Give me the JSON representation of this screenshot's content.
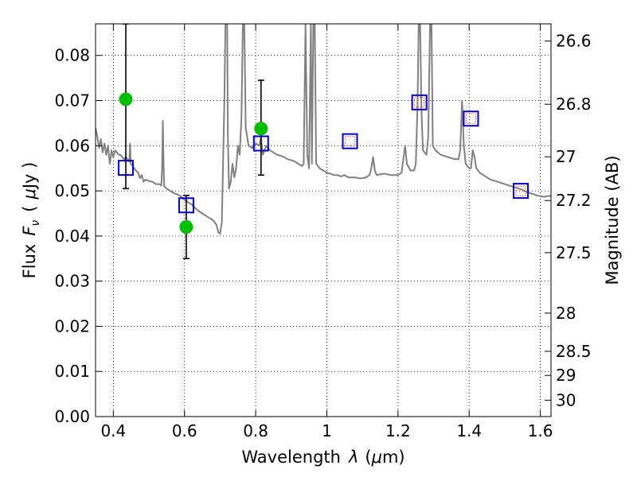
{
  "chart_data": {
    "type": "scatter",
    "xlabel_text": "Wavelength",
    "xlabel_symbol": "λ",
    "xlabel_unit_open": "(",
    "xlabel_unit_symbol": "μ",
    "xlabel_unit_rest": "m)",
    "ylabel_text": "Flux",
    "ylabel_symbol_F": "F",
    "ylabel_symbol_sub": "ν",
    "ylabel_unit_open": "(",
    "ylabel_unit_symbol": "μ",
    "ylabel_unit_rest": "Jy )",
    "y2label": "Magnitude (AB)",
    "xlim": [
      0.35,
      1.63
    ],
    "ylim": [
      0.0,
      0.087
    ],
    "grid": true,
    "x_ticks": [
      {
        "value": 0.4,
        "label": "0.4"
      },
      {
        "value": 0.6,
        "label": "0.6"
      },
      {
        "value": 0.8,
        "label": "0.8"
      },
      {
        "value": 1.0,
        "label": "1"
      },
      {
        "value": 1.2,
        "label": "1.2"
      },
      {
        "value": 1.4,
        "label": "1.4"
      },
      {
        "value": 1.6,
        "label": "1.6"
      }
    ],
    "y_ticks": [
      {
        "value": 0.0,
        "label": "0.00"
      },
      {
        "value": 0.01,
        "label": "0.01"
      },
      {
        "value": 0.02,
        "label": "0.02"
      },
      {
        "value": 0.03,
        "label": "0.03"
      },
      {
        "value": 0.04,
        "label": "0.04"
      },
      {
        "value": 0.05,
        "label": "0.05"
      },
      {
        "value": 0.06,
        "label": "0.06"
      },
      {
        "value": 0.07,
        "label": "0.07"
      },
      {
        "value": 0.08,
        "label": "0.08"
      }
    ],
    "y2_ticks": [
      {
        "value": 26.6,
        "label": "26.6"
      },
      {
        "value": 26.8,
        "label": "26.8"
      },
      {
        "value": 27.0,
        "label": "27"
      },
      {
        "value": 27.2,
        "label": "27.2"
      },
      {
        "value": 27.5,
        "label": "27.5"
      },
      {
        "value": 28.0,
        "label": "28"
      },
      {
        "value": 28.5,
        "label": "28.5"
      },
      {
        "value": 29.0,
        "label": "29"
      },
      {
        "value": 30.0,
        "label": "30"
      }
    ],
    "colors": {
      "spectrum": "#808080",
      "observed": "#00bf00",
      "model": "#0000cc",
      "model_inner": "#ff0000",
      "error": "#000000"
    },
    "series": [
      {
        "type": "line",
        "points": [
          [
            0.35,
            0.064
          ],
          [
            0.355,
            0.062
          ],
          [
            0.36,
            0.0595
          ],
          [
            0.365,
            0.0615
          ],
          [
            0.37,
            0.0585
          ],
          [
            0.375,
            0.0605
          ],
          [
            0.38,
            0.058
          ],
          [
            0.385,
            0.06
          ],
          [
            0.39,
            0.056
          ],
          [
            0.395,
            0.059
          ],
          [
            0.4,
            0.0575
          ],
          [
            0.405,
            0.059
          ],
          [
            0.41,
            0.0585
          ],
          [
            0.415,
            0.058
          ],
          [
            0.42,
            0.058
          ],
          [
            0.425,
            0.0575
          ],
          [
            0.43,
            0.057
          ],
          [
            0.435,
            0.0575
          ],
          [
            0.44,
            0.057
          ],
          [
            0.445,
            0.0565
          ],
          [
            0.447,
            0.0605
          ],
          [
            0.449,
            0.056
          ],
          [
            0.455,
            0.0555
          ],
          [
            0.46,
            0.0548
          ],
          [
            0.47,
            0.054
          ],
          [
            0.475,
            0.0528
          ],
          [
            0.48,
            0.0535
          ],
          [
            0.485,
            0.052
          ],
          [
            0.49,
            0.0525
          ],
          [
            0.5,
            0.0522
          ],
          [
            0.51,
            0.052
          ],
          [
            0.52,
            0.0515
          ],
          [
            0.53,
            0.0515
          ],
          [
            0.535,
            0.0512
          ],
          [
            0.537,
            0.055
          ],
          [
            0.539,
            0.0655
          ],
          [
            0.541,
            0.056
          ],
          [
            0.543,
            0.051
          ],
          [
            0.55,
            0.0505
          ],
          [
            0.56,
            0.05
          ],
          [
            0.57,
            0.0495
          ],
          [
            0.58,
            0.0492
          ],
          [
            0.59,
            0.0488
          ],
          [
            0.6,
            0.048
          ],
          [
            0.61,
            0.0475
          ],
          [
            0.62,
            0.047
          ],
          [
            0.63,
            0.0462
          ],
          [
            0.64,
            0.0455
          ],
          [
            0.65,
            0.045
          ],
          [
            0.66,
            0.0445
          ],
          [
            0.67,
            0.044
          ],
          [
            0.68,
            0.0435
          ],
          [
            0.69,
            0.0425
          ],
          [
            0.695,
            0.0408
          ],
          [
            0.7,
            0.0405
          ],
          [
            0.705,
            0.043
          ],
          [
            0.708,
            0.055
          ],
          [
            0.712,
            0.07
          ],
          [
            0.715,
            0.087
          ],
          [
            0.72,
            0.087
          ],
          [
            0.722,
            0.062
          ],
          [
            0.725,
            0.0505
          ],
          [
            0.73,
            0.052
          ],
          [
            0.735,
            0.056
          ],
          [
            0.74,
            0.053
          ],
          [
            0.745,
            0.055
          ],
          [
            0.75,
            0.06
          ],
          [
            0.755,
            0.058
          ],
          [
            0.76,
            0.066
          ],
          [
            0.764,
            0.087
          ],
          [
            0.768,
            0.087
          ],
          [
            0.772,
            0.064
          ],
          [
            0.78,
            0.06
          ],
          [
            0.79,
            0.0595
          ],
          [
            0.8,
            0.0605
          ],
          [
            0.81,
            0.06
          ],
          [
            0.815,
            0.062
          ],
          [
            0.82,
            0.058
          ],
          [
            0.83,
            0.06
          ],
          [
            0.84,
            0.059
          ],
          [
            0.85,
            0.0585
          ],
          [
            0.86,
            0.058
          ],
          [
            0.87,
            0.0578
          ],
          [
            0.88,
            0.0575
          ],
          [
            0.89,
            0.057
          ],
          [
            0.9,
            0.0568
          ],
          [
            0.91,
            0.0565
          ],
          [
            0.92,
            0.056
          ],
          [
            0.93,
            0.0555
          ],
          [
            0.935,
            0.056
          ],
          [
            0.94,
            0.087
          ],
          [
            0.945,
            0.058
          ],
          [
            0.95,
            0.055
          ],
          [
            0.955,
            0.087
          ],
          [
            0.958,
            0.056
          ],
          [
            0.962,
            0.087
          ],
          [
            0.966,
            0.087
          ],
          [
            0.97,
            0.056
          ],
          [
            0.98,
            0.055
          ],
          [
            0.99,
            0.0545
          ],
          [
            1.0,
            0.054
          ],
          [
            1.01,
            0.0538
          ],
          [
            1.02,
            0.0535
          ],
          [
            1.03,
            0.0535
          ],
          [
            1.04,
            0.0532
          ],
          [
            1.05,
            0.0535
          ],
          [
            1.06,
            0.053
          ],
          [
            1.07,
            0.053
          ],
          [
            1.08,
            0.053
          ],
          [
            1.09,
            0.0528
          ],
          [
            1.1,
            0.0528
          ],
          [
            1.11,
            0.053
          ],
          [
            1.12,
            0.0535
          ],
          [
            1.125,
            0.055
          ],
          [
            1.13,
            0.0575
          ],
          [
            1.135,
            0.0545
          ],
          [
            1.14,
            0.0535
          ],
          [
            1.16,
            0.0538
          ],
          [
            1.18,
            0.0535
          ],
          [
            1.2,
            0.0535
          ],
          [
            1.21,
            0.054
          ],
          [
            1.22,
            0.06
          ],
          [
            1.225,
            0.056
          ],
          [
            1.235,
            0.0545
          ],
          [
            1.245,
            0.0545
          ],
          [
            1.25,
            0.056
          ],
          [
            1.255,
            0.069
          ],
          [
            1.258,
            0.087
          ],
          [
            1.262,
            0.087
          ],
          [
            1.266,
            0.068
          ],
          [
            1.27,
            0.059
          ],
          [
            1.28,
            0.058
          ],
          [
            1.285,
            0.062
          ],
          [
            1.29,
            0.087
          ],
          [
            1.294,
            0.087
          ],
          [
            1.298,
            0.06
          ],
          [
            1.305,
            0.059
          ],
          [
            1.32,
            0.058
          ],
          [
            1.34,
            0.0575
          ],
          [
            1.36,
            0.057
          ],
          [
            1.37,
            0.057
          ],
          [
            1.375,
            0.059
          ],
          [
            1.38,
            0.07
          ],
          [
            1.385,
            0.06
          ],
          [
            1.39,
            0.056
          ],
          [
            1.4,
            0.055
          ],
          [
            1.405,
            0.055
          ],
          [
            1.41,
            0.059
          ],
          [
            1.415,
            0.0575
          ],
          [
            1.42,
            0.055
          ],
          [
            1.43,
            0.054
          ],
          [
            1.44,
            0.0535
          ],
          [
            1.45,
            0.053
          ],
          [
            1.46,
            0.0525
          ],
          [
            1.48,
            0.052
          ],
          [
            1.5,
            0.0515
          ],
          [
            1.52,
            0.051
          ],
          [
            1.54,
            0.0505
          ],
          [
            1.55,
            0.0502
          ],
          [
            1.56,
            0.0498
          ],
          [
            1.57,
            0.0495
          ],
          [
            1.58,
            0.0493
          ],
          [
            1.59,
            0.049
          ],
          [
            1.6,
            0.0488
          ],
          [
            1.61,
            0.0487
          ],
          [
            1.62,
            0.0488
          ],
          [
            1.63,
            0.0489
          ]
        ]
      },
      {
        "type": "points",
        "marker": "filled-circle",
        "points": [
          {
            "x": 0.435,
            "y": 0.0703,
            "yerr": [
              0.0505,
              0.087
            ]
          },
          {
            "x": 0.605,
            "y": 0.042,
            "yerr": [
              0.035,
              0.049
            ]
          },
          {
            "x": 0.815,
            "y": 0.0638,
            "yerr": [
              0.0535,
              0.0745
            ]
          }
        ]
      },
      {
        "type": "points",
        "marker": "open-square",
        "points": [
          {
            "x": 0.435,
            "y": 0.0551
          },
          {
            "x": 0.605,
            "y": 0.0468
          },
          {
            "x": 0.815,
            "y": 0.0605
          },
          {
            "x": 1.065,
            "y": 0.061,
            "inner": true
          },
          {
            "x": 1.26,
            "y": 0.0696,
            "inner": true
          },
          {
            "x": 1.405,
            "y": 0.066,
            "inner": true
          },
          {
            "x": 1.545,
            "y": 0.05,
            "inner": true
          }
        ]
      }
    ]
  }
}
